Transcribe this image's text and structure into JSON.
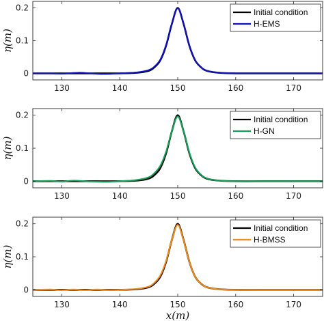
{
  "chart_data": [
    {
      "type": "line",
      "ylabel": "η(m)",
      "xlabel": "",
      "xlim": [
        125,
        175
      ],
      "ylim": [
        -0.02,
        0.22
      ],
      "xticks": [
        130,
        140,
        150,
        160,
        170
      ],
      "yticks": [
        0,
        0.1,
        0.2
      ],
      "xtick_labels": [
        "130",
        "140",
        "150",
        "160",
        "170"
      ],
      "ytick_labels": [
        "0",
        "0.1",
        "0.2"
      ],
      "legend_position": "top-right",
      "series": [
        {
          "name": "Initial condition",
          "color": "#000000",
          "x": [
            125,
            130,
            135,
            140,
            143,
            145,
            146,
            147,
            148,
            149,
            150,
            151,
            152,
            153,
            154,
            155,
            157,
            160,
            165,
            170,
            175
          ],
          "y": [
            0,
            0,
            0,
            0,
            0.002,
            0.008,
            0.019,
            0.04,
            0.085,
            0.152,
            0.2,
            0.152,
            0.085,
            0.04,
            0.019,
            0.008,
            0.002,
            0,
            0,
            0,
            0
          ]
        },
        {
          "name": "H-EMS",
          "color": "#1010c0",
          "x": [
            125,
            128,
            130,
            133,
            135,
            137,
            140,
            143,
            145,
            146,
            147,
            148,
            149,
            150,
            151,
            152,
            153,
            154,
            155,
            157,
            160,
            165,
            170,
            175
          ],
          "y": [
            0,
            0,
            -0.001,
            0.002,
            0,
            -0.002,
            0,
            0.003,
            0.01,
            0.021,
            0.042,
            0.087,
            0.153,
            0.199,
            0.152,
            0.085,
            0.04,
            0.019,
            0.008,
            0.002,
            0,
            0,
            0,
            0
          ]
        }
      ]
    },
    {
      "type": "line",
      "ylabel": "η(m)",
      "xlabel": "",
      "xlim": [
        125,
        175
      ],
      "ylim": [
        -0.02,
        0.22
      ],
      "xticks": [
        130,
        140,
        150,
        160,
        170
      ],
      "yticks": [
        0,
        0.1,
        0.2
      ],
      "xtick_labels": [
        "130",
        "140",
        "150",
        "160",
        "170"
      ],
      "ytick_labels": [
        "0",
        "0.1",
        "0.2"
      ],
      "legend_position": "top-right",
      "series": [
        {
          "name": "Initial condition",
          "color": "#000000",
          "x": [
            125,
            130,
            135,
            140,
            143,
            145,
            146,
            147,
            148,
            149,
            150,
            151,
            152,
            153,
            154,
            155,
            157,
            160,
            165,
            170,
            175
          ],
          "y": [
            0,
            0,
            0,
            0,
            0.002,
            0.008,
            0.019,
            0.04,
            0.085,
            0.152,
            0.2,
            0.152,
            0.085,
            0.04,
            0.019,
            0.008,
            0.002,
            0,
            0,
            0,
            0
          ]
        },
        {
          "name": "H-GN",
          "color": "#17a05a",
          "x": [
            125,
            128,
            130,
            132,
            135,
            138,
            140,
            143,
            145,
            146,
            147,
            148,
            149,
            150,
            151,
            152,
            153,
            154,
            155,
            157,
            160,
            165,
            170,
            175
          ],
          "y": [
            0,
            0.001,
            -0.001,
            0.002,
            -0.001,
            -0.002,
            0,
            0.004,
            0.012,
            0.025,
            0.047,
            0.09,
            0.152,
            0.196,
            0.152,
            0.087,
            0.042,
            0.02,
            0.009,
            0.002,
            0,
            0,
            0,
            0
          ]
        }
      ]
    },
    {
      "type": "line",
      "ylabel": "η(m)",
      "xlabel": "x(m)",
      "xlim": [
        125,
        175
      ],
      "ylim": [
        -0.02,
        0.22
      ],
      "xticks": [
        130,
        140,
        150,
        160,
        170
      ],
      "yticks": [
        0,
        0.1,
        0.2
      ],
      "xtick_labels": [
        "130",
        "140",
        "150",
        "160",
        "170"
      ],
      "ytick_labels": [
        "0",
        "0.1",
        "0.2"
      ],
      "legend_position": "top-right",
      "series": [
        {
          "name": "Initial condition",
          "color": "#000000",
          "x": [
            125,
            130,
            135,
            140,
            143,
            145,
            146,
            147,
            148,
            149,
            150,
            151,
            152,
            153,
            154,
            155,
            157,
            160,
            165,
            170,
            175
          ],
          "y": [
            0,
            0,
            0,
            0,
            0.002,
            0.008,
            0.019,
            0.04,
            0.085,
            0.152,
            0.2,
            0.152,
            0.085,
            0.04,
            0.019,
            0.008,
            0.002,
            0,
            0,
            0,
            0
          ]
        },
        {
          "name": "H-BMSS",
          "color": "#f08c1c",
          "x": [
            125,
            128,
            130,
            132,
            134,
            136,
            138,
            140,
            143,
            145,
            146,
            147,
            148,
            149,
            150,
            151,
            152,
            153,
            154,
            155,
            157,
            160,
            165,
            170,
            175
          ],
          "y": [
            0,
            0.001,
            -0.001,
            0.001,
            -0.001,
            0.001,
            -0.001,
            0,
            0.003,
            0.01,
            0.022,
            0.044,
            0.088,
            0.152,
            0.197,
            0.151,
            0.085,
            0.04,
            0.019,
            0.008,
            0.002,
            0,
            0,
            0,
            0
          ]
        }
      ]
    }
  ]
}
